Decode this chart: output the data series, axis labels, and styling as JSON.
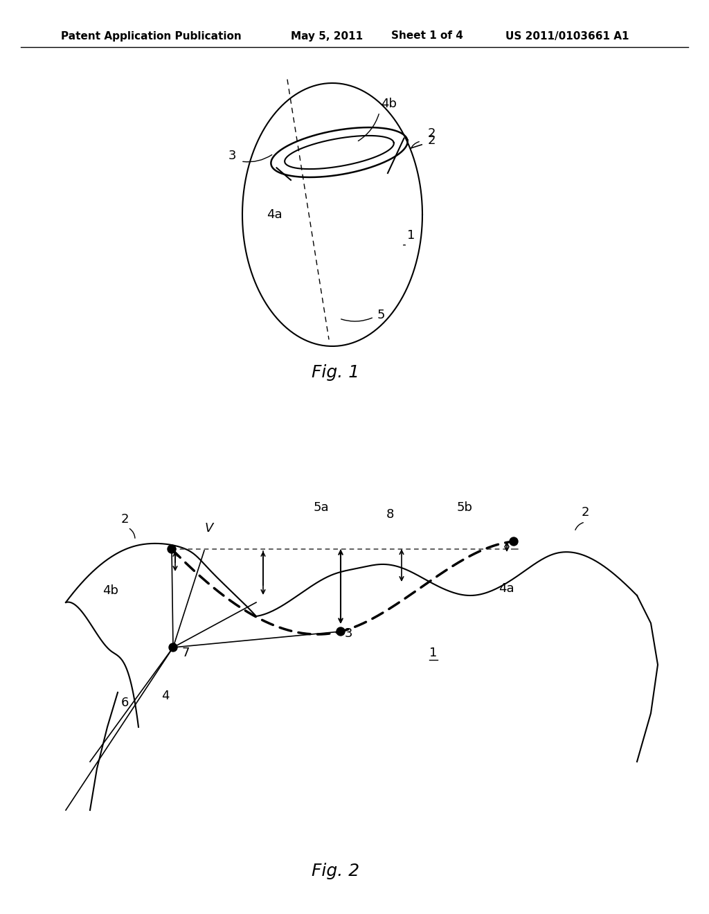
{
  "title_text": "Patent Application Publication",
  "title_date": "May 5, 2011",
  "title_sheet": "Sheet 1 of 4",
  "title_patent": "US 2011/0103661 A1",
  "fig1_label": "Fig. 1",
  "fig2_label": "Fig. 2",
  "background_color": "#ffffff",
  "line_color": "#000000",
  "dashed_color": "#888888"
}
